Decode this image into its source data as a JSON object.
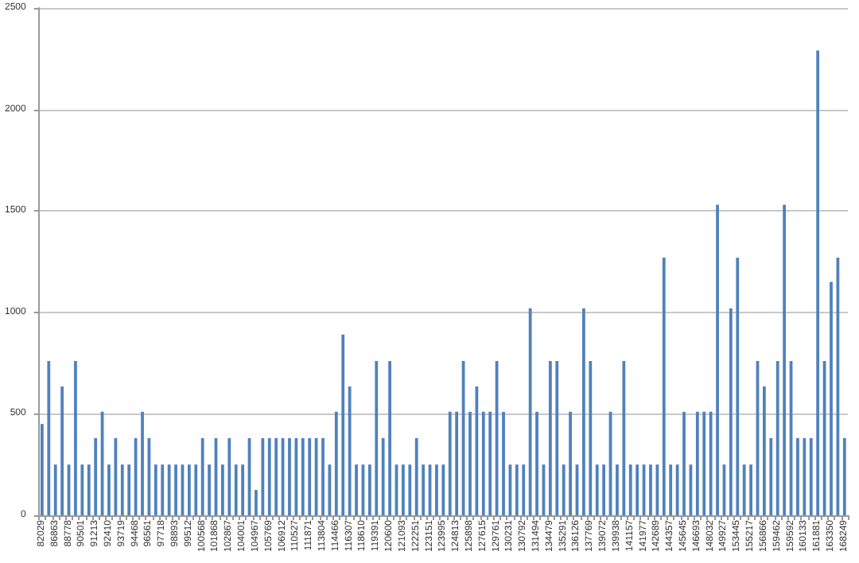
{
  "chart_data": {
    "type": "bar",
    "color": "#4f81bd",
    "grid": "y",
    "ylim": [
      0,
      2500
    ],
    "yticks": [
      0,
      500,
      1000,
      1500,
      2000,
      2500
    ],
    "categories": [
      "82029",
      null,
      "86863",
      null,
      "88778",
      null,
      "90501",
      null,
      "91213",
      null,
      "92410",
      null,
      "93719",
      null,
      "94468",
      null,
      "96561",
      null,
      "97718",
      null,
      "98893",
      null,
      "99512",
      null,
      "100568",
      null,
      "101868",
      null,
      "102867",
      null,
      "104001",
      null,
      "104967",
      null,
      "105769",
      null,
      "106912",
      null,
      "110527",
      null,
      "111871",
      null,
      "113804",
      null,
      "114466",
      null,
      "116307",
      null,
      "118610",
      null,
      "119391",
      null,
      "120600",
      null,
      "121093",
      null,
      "122251",
      null,
      "123151",
      null,
      "123995",
      null,
      "124813",
      null,
      "125898",
      null,
      "127615",
      null,
      "129761",
      null,
      "130231",
      null,
      "130792",
      null,
      "131494",
      null,
      "134479",
      null,
      "135291",
      null,
      "136126",
      null,
      "137769",
      null,
      "139072",
      null,
      "139938",
      null,
      "141157",
      null,
      "141977",
      null,
      "142689",
      null,
      "144357",
      null,
      "145645",
      null,
      "146693",
      null,
      "148032",
      null,
      "149927",
      null,
      "153445",
      null,
      "155217",
      null,
      "156866",
      null,
      "159462",
      null,
      "159592",
      null,
      "160133",
      null,
      "161881",
      null,
      "163350",
      null,
      "168249"
    ],
    "values": [
      450,
      760,
      250,
      635,
      250,
      760,
      250,
      250,
      380,
      510,
      250,
      380,
      250,
      250,
      380,
      510,
      380,
      250,
      250,
      250,
      250,
      250,
      250,
      250,
      380,
      250,
      380,
      250,
      380,
      250,
      250,
      380,
      125,
      380,
      380,
      380,
      380,
      380,
      380,
      380,
      380,
      380,
      380,
      250,
      510,
      890,
      635,
      250,
      250,
      250,
      760,
      380,
      760,
      250,
      250,
      250,
      380,
      250,
      250,
      250,
      250,
      510,
      510,
      760,
      510,
      635,
      510,
      510,
      760,
      510,
      250,
      250,
      250,
      1020,
      510,
      250,
      760,
      760,
      250,
      510,
      250,
      1020,
      760,
      250,
      250,
      510,
      250,
      760,
      250,
      250,
      250,
      250,
      250,
      1270,
      250,
      250,
      510,
      250,
      510,
      510,
      510,
      1530,
      250,
      1020,
      1270,
      250,
      250,
      760,
      635,
      380,
      760,
      1530,
      760,
      380,
      380,
      380,
      2290,
      760,
      1150,
      1270,
      380
    ]
  }
}
